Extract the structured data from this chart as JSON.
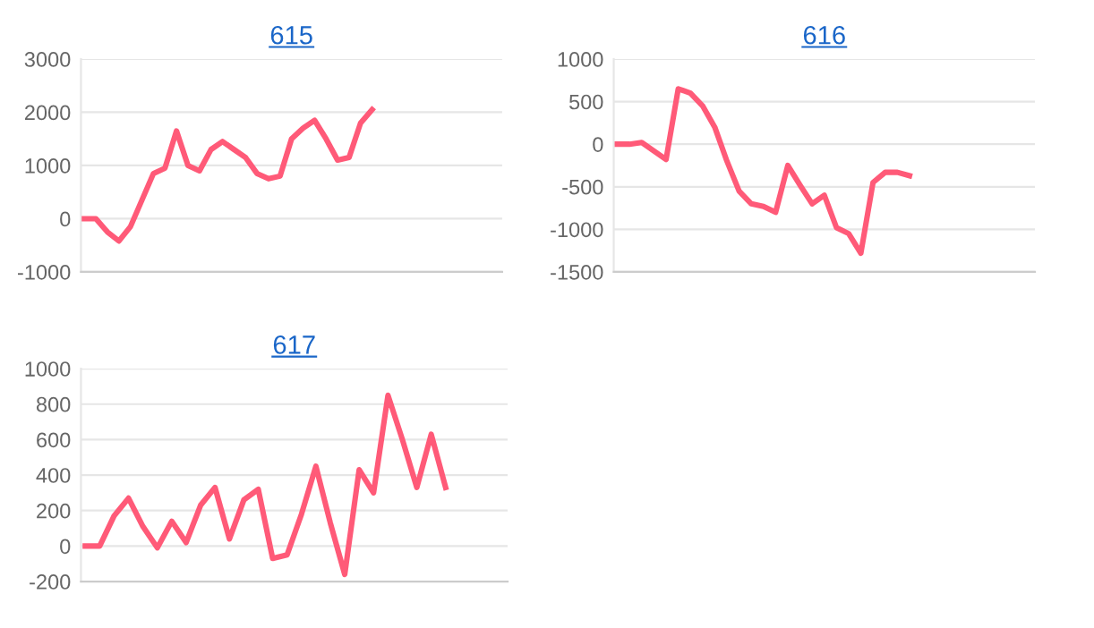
{
  "chart_data": [
    {
      "type": "line",
      "title": "615",
      "categories": [
        null,
        null,
        null,
        null,
        null,
        null,
        null,
        null,
        null,
        null,
        null,
        null,
        null,
        null,
        null,
        null,
        null,
        null,
        null,
        null,
        null,
        null,
        null,
        null,
        null,
        null,
        null,
        null,
        null,
        null,
        null,
        null,
        null,
        null,
        null,
        null,
        null
      ],
      "series": [
        {
          "color": "#ff5a78",
          "values": [
            0,
            0,
            -250,
            -420,
            -150,
            350,
            850,
            950,
            1650,
            1000,
            900,
            1300,
            1450,
            1300,
            1150,
            850,
            750,
            800,
            1500,
            1700,
            1850,
            1500,
            1100,
            1150,
            1800,
            2050,
            null,
            null,
            null,
            null,
            null,
            null,
            null,
            null,
            null,
            null,
            null
          ]
        }
      ],
      "ylim": [
        -1000,
        3000
      ],
      "yticks": [
        -1000,
        0,
        1000,
        2000,
        3000
      ],
      "grid": "y",
      "marker": "none",
      "line_style": "solid"
    },
    {
      "type": "line",
      "title": "616",
      "categories": [
        null,
        null,
        null,
        null,
        null,
        null,
        null,
        null,
        null,
        null,
        null,
        null,
        null,
        null,
        null,
        null,
        null,
        null,
        null,
        null,
        null,
        null,
        null,
        null,
        null,
        null,
        null,
        null,
        null,
        null,
        null,
        null,
        null,
        null,
        null
      ],
      "series": [
        {
          "color": "#ff5a78",
          "values": [
            0,
            0,
            20,
            -80,
            -180,
            650,
            600,
            450,
            200,
            -200,
            -550,
            -700,
            -730,
            -800,
            -250,
            -480,
            -700,
            -600,
            -980,
            -1050,
            -1280,
            -450,
            -330,
            -330,
            -370,
            null,
            null,
            null,
            null,
            null,
            null,
            null,
            null,
            null,
            null
          ]
        }
      ],
      "ylim": [
        -1500,
        1000
      ],
      "yticks": [
        -1500,
        -1000,
        -500,
        0,
        500,
        1000
      ],
      "grid": "y",
      "marker": "none",
      "line_style": "solid"
    },
    {
      "type": "line",
      "title": "617",
      "categories": [
        null,
        null,
        null,
        null,
        null,
        null,
        null,
        null,
        null,
        null,
        null,
        null,
        null,
        null,
        null,
        null,
        null,
        null,
        null,
        null,
        null,
        null,
        null,
        null,
        null,
        null,
        null,
        null,
        null,
        null
      ],
      "series": [
        {
          "color": "#ff5a78",
          "values": [
            0,
            0,
            170,
            270,
            110,
            -10,
            140,
            20,
            230,
            330,
            40,
            260,
            320,
            -70,
            -50,
            180,
            450,
            130,
            -160,
            430,
            300,
            850,
            600,
            330,
            630,
            330,
            null,
            null,
            null,
            null
          ]
        }
      ],
      "ylim": [
        -200,
        1000
      ],
      "yticks": [
        -200,
        0,
        200,
        400,
        600,
        800,
        1000
      ],
      "grid": "y",
      "marker": "none",
      "line_style": "solid"
    }
  ]
}
